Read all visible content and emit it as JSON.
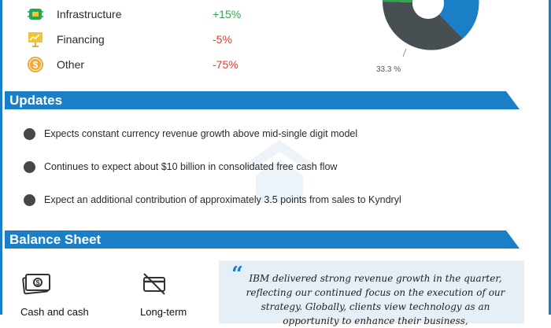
{
  "segments": [
    {
      "label": "Infrastructure",
      "change": "+15%",
      "icon": "chip-icon",
      "color": "#2ea84a"
    },
    {
      "label": "Financing",
      "change": "-5%",
      "icon": "presentation-chart-icon",
      "color": "#e03a2f"
    },
    {
      "label": "Other",
      "change": "-75%",
      "icon": "dollar-coin-icon",
      "color": "#e03a2f"
    }
  ],
  "donut": {
    "visible_label": "33.3 %",
    "slices": [
      {
        "name": "green",
        "color": "#2ea84a"
      },
      {
        "name": "blue",
        "color": "#1a7fc6"
      },
      {
        "name": "dark",
        "color": "#474f52"
      }
    ]
  },
  "updates": {
    "title": "Updates",
    "items": [
      "Expects constant currency revenue growth above mid-single digit model",
      "Continues to expect about $10 billion in consolidated free cash flow",
      "Expect an additional contribution of approximately 3.5 points from sales to Kyndryl"
    ]
  },
  "balance_sheet": {
    "title": "Balance Sheet",
    "items": [
      {
        "label": "Cash and cash",
        "icon": "cash-icon"
      },
      {
        "label": "Long-term",
        "icon": "no-card-icon"
      }
    ],
    "quote": "IBM delivered strong revenue growth in the quarter, reflecting our continued focus on the execution of our strategy. Globally, clients view technology as an opportunity to enhance their business,"
  },
  "colors": {
    "accent": "#1a7fc6",
    "positive": "#2ea84a",
    "negative": "#e03a2f",
    "dark": "#474f52"
  }
}
